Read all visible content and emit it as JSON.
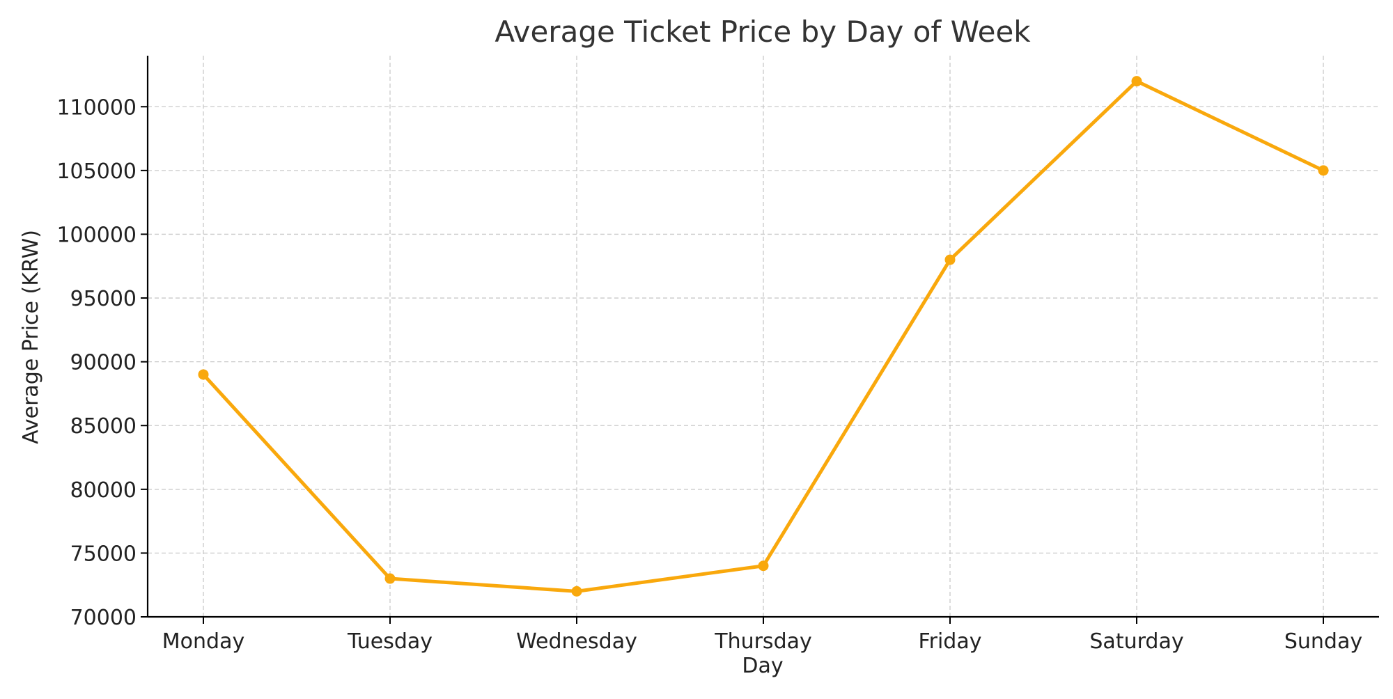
{
  "chart_data": {
    "type": "line",
    "title": "Average Ticket Price by Day of Week",
    "xlabel": "Day",
    "ylabel": "Average Price (KRW)",
    "categories": [
      "Monday",
      "Tuesday",
      "Wednesday",
      "Thursday",
      "Friday",
      "Saturday",
      "Sunday"
    ],
    "series": [
      {
        "name": "Average Price",
        "values": [
          89000,
          73000,
          72000,
          74000,
          98000,
          112000,
          105000
        ]
      }
    ],
    "ylim": [
      70000,
      114000
    ],
    "yticks": [
      70000,
      75000,
      80000,
      85000,
      90000,
      95000,
      100000,
      105000,
      110000
    ],
    "grid": true,
    "line_color": "#F9A80C",
    "grid_color": "#C9C9C9",
    "axis_color": "#000000",
    "text_color": "#222222",
    "title_color": "#333333"
  }
}
